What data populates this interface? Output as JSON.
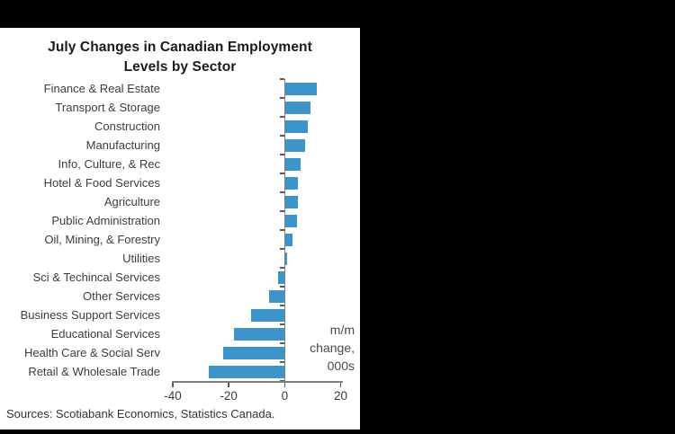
{
  "window": {
    "background_color": "#000000",
    "panel_background": "#ffffff"
  },
  "chart_data": {
    "type": "bar",
    "orientation": "horizontal",
    "title_lines": [
      "July Changes in Canadian Employment",
      "Levels by Sector"
    ],
    "categories": [
      "Finance & Real Estate",
      "Transport & Storage",
      "Construction",
      "Manufacturing",
      "Info, Culture, & Rec",
      "Hotel & Food Services",
      "Agriculture",
      "Public Administration",
      "Oil, Mining, & Forestry",
      "Utilities",
      "Sci & Techincal Services",
      "Other Services",
      "Business Support Services",
      "Educational Services",
      "Health Care & Social Serv",
      "Retail & Wholesale Trade"
    ],
    "values": [
      11,
      9,
      8,
      7,
      5.5,
      4.5,
      4.5,
      4,
      2.5,
      0.5,
      -2.5,
      -5.5,
      -12,
      -18,
      -22,
      -27
    ],
    "xlabel": "",
    "ylabel": "",
    "xlim": [
      -40,
      20
    ],
    "xticks": [
      "-40",
      "-20",
      "0",
      "20"
    ],
    "xtick_values": [
      -40,
      -20,
      0,
      20
    ],
    "grid": false,
    "legend": false,
    "annotation_lines": [
      "m/m",
      "change,",
      "000s"
    ],
    "bar_color": "#3d94c9",
    "axis_color": "#7f7f7f"
  },
  "source_note": "Sources: Scotiabank Economics, Statistics Canada."
}
